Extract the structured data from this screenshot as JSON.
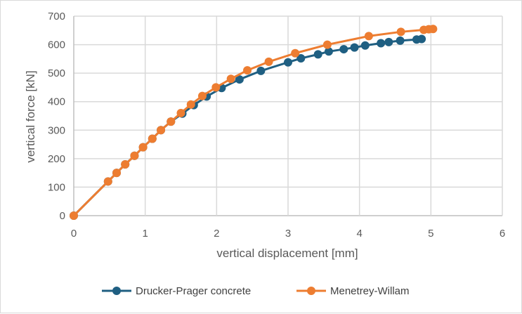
{
  "chart_data": {
    "type": "line",
    "xlabel": "vertical displacement [mm]",
    "ylabel": "vertical force [kN]",
    "xlim": [
      0,
      6
    ],
    "ylim": [
      0,
      700
    ],
    "xticks": [
      0,
      1,
      2,
      3,
      4,
      5,
      6
    ],
    "yticks": [
      0,
      100,
      200,
      300,
      400,
      500,
      600,
      700
    ],
    "grid": true,
    "legend_position": "bottom",
    "series": [
      {
        "name": "Drucker-Prager concrete",
        "color": "#1f5f82",
        "x": [
          0,
          0.48,
          0.6,
          0.72,
          0.85,
          0.97,
          1.1,
          1.22,
          1.36,
          1.52,
          1.68,
          1.86,
          2.07,
          2.32,
          2.62,
          3.0,
          3.18,
          3.42,
          3.57,
          3.78,
          3.93,
          4.08,
          4.3,
          4.41,
          4.57,
          4.8,
          4.87
        ],
        "y": [
          0,
          120,
          150,
          180,
          210,
          240,
          270,
          300,
          330,
          358,
          388,
          418,
          448,
          478,
          508,
          538,
          552,
          566,
          576,
          584,
          590,
          597,
          605,
          609,
          614,
          618,
          620
        ]
      },
      {
        "name": "Menetrey-Willam",
        "color": "#ed7d31",
        "x": [
          0,
          0.48,
          0.6,
          0.72,
          0.85,
          0.97,
          1.1,
          1.22,
          1.36,
          1.5,
          1.64,
          1.8,
          1.99,
          2.2,
          2.43,
          2.73,
          3.1,
          3.55,
          4.13,
          4.58,
          4.9,
          4.97,
          5.03
        ],
        "y": [
          0,
          120,
          150,
          180,
          210,
          240,
          270,
          300,
          330,
          360,
          390,
          420,
          450,
          480,
          510,
          540,
          570,
          600,
          630,
          645,
          652,
          654,
          655
        ]
      }
    ]
  }
}
